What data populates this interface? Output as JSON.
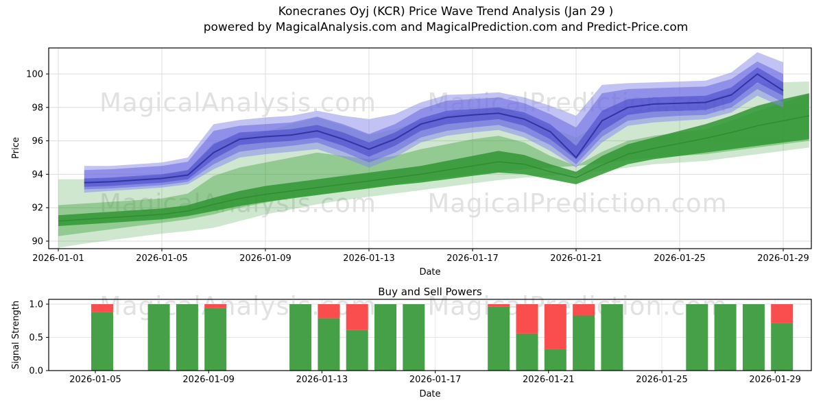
{
  "title": {
    "line1": "Konecranes Oyj (KCR) Price Wave Trend Analysis (Jan 29 )",
    "line2": "powered by MagicalAnalysis.com and MagicalPrediction.com and Predict-Price.com"
  },
  "watermarks": {
    "analysis": "MagicalAnalysis.com",
    "prediction": "MagicalPrediction.com"
  },
  "chart_data": [
    {
      "type": "area",
      "title": "",
      "xlabel": "Date",
      "ylabel": "Price",
      "ylim": [
        89.5,
        101.6
      ],
      "ytick_values": [
        90,
        92,
        94,
        96,
        98,
        100
      ],
      "xtick_labels": [
        "2026-01-01",
        "2026-01-05",
        "2026-01-09",
        "2026-01-13",
        "2026-01-17",
        "2026-01-21",
        "2026-01-25",
        "2026-01-29"
      ],
      "grid": true,
      "bands": [
        {
          "name": "green-outer-band",
          "color": "#3aa03a",
          "opacity": 0.25,
          "start_day": 1,
          "upper": [
            93.7,
            93.7,
            93.75,
            93.8,
            93.9,
            94.25,
            95.9,
            96.25,
            96.55,
            97.0,
            97.4,
            96.9,
            96.35,
            96.7,
            97.2,
            97.55,
            97.8,
            98.0,
            97.55,
            96.8,
            96.2,
            97.1,
            97.7,
            98.0,
            98.15,
            98.35,
            98.9,
            99.4,
            99.5,
            99.55
          ],
          "lower": [
            89.6,
            89.85,
            90.05,
            90.25,
            90.45,
            90.6,
            90.8,
            91.2,
            91.6,
            91.9,
            92.2,
            92.45,
            92.65,
            92.85,
            93.05,
            93.25,
            93.45,
            93.65,
            93.8,
            93.9,
            94.0,
            94.2,
            94.4,
            94.6,
            94.7,
            94.8,
            95.0,
            95.2,
            95.4,
            95.6
          ]
        },
        {
          "name": "green-mid-band",
          "color": "#3aa03a",
          "opacity": 0.4,
          "start_day": 1,
          "upper": [
            92.15,
            92.25,
            92.35,
            92.45,
            92.55,
            92.85,
            93.9,
            94.4,
            94.7,
            95.0,
            95.3,
            95.1,
            94.9,
            95.1,
            95.5,
            95.8,
            96.1,
            96.3,
            95.9,
            95.1,
            94.5,
            95.35,
            96.0,
            96.3,
            96.5,
            96.7,
            97.2,
            97.8,
            98.3,
            98.8
          ],
          "lower": [
            90.3,
            90.5,
            90.7,
            90.9,
            91.1,
            91.3,
            91.6,
            92.0,
            92.3,
            92.6,
            92.8,
            93.0,
            93.2,
            93.4,
            93.6,
            93.8,
            94.0,
            94.15,
            94.3,
            94.4,
            94.5,
            94.65,
            94.85,
            95.0,
            95.1,
            95.2,
            95.4,
            95.6,
            95.8,
            96.0
          ]
        },
        {
          "name": "green-bright-band",
          "color": "#2f9632",
          "opacity": 0.85,
          "start_day": 1,
          "upper": [
            91.55,
            91.65,
            91.75,
            91.85,
            91.95,
            92.15,
            92.6,
            93.0,
            93.3,
            93.5,
            93.7,
            93.9,
            94.1,
            94.3,
            94.5,
            94.8,
            95.1,
            95.4,
            95.15,
            94.6,
            94.15,
            95.1,
            95.8,
            96.2,
            96.6,
            97.0,
            97.5,
            98.1,
            98.5,
            98.85
          ],
          "lower": [
            90.9,
            91.0,
            91.1,
            91.2,
            91.3,
            91.5,
            91.8,
            92.1,
            92.35,
            92.55,
            92.75,
            92.95,
            93.15,
            93.35,
            93.5,
            93.7,
            93.9,
            94.1,
            94.0,
            93.7,
            93.4,
            94.0,
            94.6,
            94.9,
            95.1,
            95.3,
            95.5,
            95.7,
            95.9,
            96.1
          ]
        },
        {
          "name": "blue-outer-band",
          "color": "#8585ec",
          "opacity": 0.5,
          "start_day": 2,
          "upper": [
            94.5,
            94.5,
            94.6,
            94.7,
            95.0,
            97.0,
            97.25,
            97.4,
            97.5,
            97.8,
            97.5,
            97.3,
            97.6,
            98.3,
            98.75,
            98.8,
            98.9,
            98.6,
            98.1,
            97.5,
            99.35,
            99.45,
            99.5,
            99.55,
            99.6,
            100.1,
            101.3,
            100.7
          ],
          "lower": [
            92.9,
            93.0,
            93.1,
            93.2,
            93.4,
            94.3,
            95.0,
            95.2,
            95.35,
            95.5,
            95.0,
            94.4,
            95.0,
            95.9,
            96.3,
            96.5,
            96.65,
            96.2,
            95.4,
            94.4,
            95.9,
            96.9,
            97.1,
            97.2,
            97.3,
            97.7,
            98.7,
            98.0
          ]
        },
        {
          "name": "blue-mid-band",
          "color": "#5d5de0",
          "opacity": 0.5,
          "start_day": 2,
          "upper": [
            94.25,
            94.3,
            94.4,
            94.5,
            94.75,
            96.6,
            96.9,
            97.0,
            97.1,
            97.45,
            97.0,
            96.4,
            97.0,
            97.9,
            98.4,
            98.5,
            98.6,
            98.25,
            97.6,
            96.8,
            98.85,
            99.1,
            99.15,
            99.2,
            99.25,
            99.7,
            100.75,
            100.0
          ],
          "lower": [
            93.1,
            93.15,
            93.25,
            93.35,
            93.55,
            94.6,
            95.35,
            95.55,
            95.7,
            95.9,
            95.35,
            94.7,
            95.3,
            96.2,
            96.6,
            96.8,
            96.95,
            96.5,
            95.75,
            94.6,
            96.25,
            97.2,
            97.4,
            97.5,
            97.55,
            98.0,
            99.1,
            98.3
          ]
        },
        {
          "name": "blue-dark-band",
          "color": "#4444c8",
          "opacity": 0.55,
          "start_day": 2,
          "upper": [
            93.75,
            93.8,
            93.9,
            94.0,
            94.25,
            95.8,
            96.5,
            96.6,
            96.7,
            96.95,
            96.5,
            95.9,
            96.5,
            97.35,
            97.8,
            97.9,
            98.0,
            97.7,
            97.0,
            95.7,
            97.8,
            98.5,
            98.6,
            98.65,
            98.7,
            99.2,
            100.4,
            99.5
          ],
          "lower": [
            93.25,
            93.3,
            93.4,
            93.5,
            93.7,
            94.9,
            95.75,
            95.9,
            96.0,
            96.2,
            95.7,
            95.05,
            95.7,
            96.6,
            97.0,
            97.15,
            97.3,
            96.9,
            96.1,
            94.9,
            96.6,
            97.55,
            97.75,
            97.8,
            97.85,
            98.3,
            99.5,
            98.7
          ]
        }
      ],
      "lines": [
        {
          "name": "green-trend-line",
          "color": "#2e8b2e",
          "width": 1.5,
          "start_day": 1,
          "values": [
            91.2,
            91.3,
            91.4,
            91.5,
            91.6,
            91.8,
            92.2,
            92.55,
            92.8,
            93.0,
            93.2,
            93.4,
            93.6,
            93.8,
            94.0,
            94.25,
            94.5,
            94.75,
            94.6,
            94.15,
            93.8,
            94.55,
            95.2,
            95.55,
            95.85,
            96.15,
            96.5,
            96.9,
            97.2,
            97.5
          ],
          "role": "price median green wave"
        },
        {
          "name": "blue-trend-line",
          "color": "#2d2d9e",
          "width": 2,
          "start_day": 2,
          "values": [
            93.5,
            93.55,
            93.65,
            93.75,
            93.95,
            95.3,
            96.1,
            96.25,
            96.35,
            96.6,
            96.1,
            95.5,
            96.1,
            97.0,
            97.4,
            97.55,
            97.65,
            97.3,
            96.55,
            95.0,
            97.2,
            98.0,
            98.2,
            98.25,
            98.3,
            98.75,
            100.0,
            99.0
          ],
          "role": "price median blue wave"
        }
      ]
    },
    {
      "type": "bar",
      "title": "Buy and Sell Powers",
      "xlabel": "Date",
      "ylabel": "Signal Strength",
      "ylim": [
        0,
        1.07
      ],
      "ytick_labels": [
        "0.0",
        "0.5",
        "1.0"
      ],
      "ytick_values": [
        0.0,
        0.5,
        1.0
      ],
      "xtick_labels": [
        "2026-01-05",
        "2026-01-09",
        "2026-01-13",
        "2026-01-17",
        "2026-01-21",
        "2026-01-25",
        "2026-01-29"
      ],
      "colors": {
        "buy": "#46a048",
        "sell": "#fa4d4d"
      },
      "bars": [
        {
          "date": "2026-01-05",
          "buy": 0.88,
          "sell": 0.12
        },
        {
          "date": "2026-01-07",
          "buy": 1.0,
          "sell": 0.0
        },
        {
          "date": "2026-01-08",
          "buy": 1.0,
          "sell": 0.0
        },
        {
          "date": "2026-01-09",
          "buy": 0.94,
          "sell": 0.06
        },
        {
          "date": "2026-01-12",
          "buy": 1.0,
          "sell": 0.0
        },
        {
          "date": "2026-01-13",
          "buy": 0.79,
          "sell": 0.21
        },
        {
          "date": "2026-01-14",
          "buy": 0.61,
          "sell": 0.39
        },
        {
          "date": "2026-01-15",
          "buy": 1.0,
          "sell": 0.0
        },
        {
          "date": "2026-01-16",
          "buy": 1.0,
          "sell": 0.0
        },
        {
          "date": "2026-01-19",
          "buy": 0.96,
          "sell": 0.04
        },
        {
          "date": "2026-01-20",
          "buy": 0.56,
          "sell": 0.44
        },
        {
          "date": "2026-01-21",
          "buy": 0.32,
          "sell": 0.68
        },
        {
          "date": "2026-01-22",
          "buy": 0.83,
          "sell": 0.17
        },
        {
          "date": "2026-01-23",
          "buy": 1.0,
          "sell": 0.0
        },
        {
          "date": "2026-01-26",
          "buy": 1.0,
          "sell": 0.0
        },
        {
          "date": "2026-01-27",
          "buy": 1.0,
          "sell": 0.0
        },
        {
          "date": "2026-01-28",
          "buy": 1.0,
          "sell": 0.0
        },
        {
          "date": "2026-01-29",
          "buy": 0.72,
          "sell": 0.28
        }
      ]
    }
  ]
}
